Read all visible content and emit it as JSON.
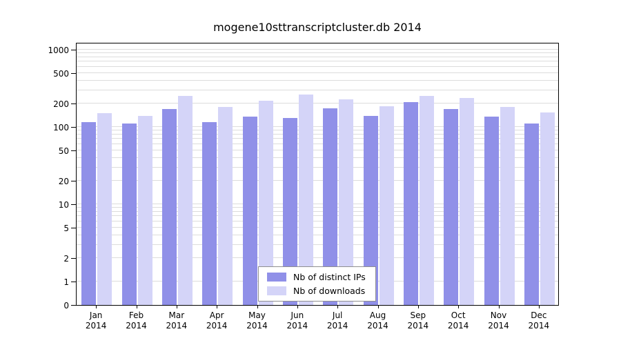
{
  "chart_data": {
    "type": "bar",
    "title": "mogene10sttranscriptcluster.db 2014",
    "year": "2014",
    "categories": [
      "Jan",
      "Feb",
      "Mar",
      "Apr",
      "May",
      "Jun",
      "Jul",
      "Aug",
      "Sep",
      "Oct",
      "Nov",
      "Dec"
    ],
    "series": [
      {
        "name": "Nb of distinct IPs",
        "color": "#9090e8",
        "values": [
          115,
          112,
          170,
          115,
          135,
          130,
          175,
          140,
          210,
          170,
          135,
          110
        ]
      },
      {
        "name": "Nb of downloads",
        "color": "#d4d4f8",
        "values": [
          150,
          140,
          255,
          180,
          220,
          265,
          230,
          185,
          250,
          235,
          180,
          155
        ]
      }
    ],
    "y_axis": {
      "scale": "log",
      "tick_values": [
        1000,
        500,
        200,
        100,
        50,
        20,
        10,
        5,
        2,
        1,
        0
      ],
      "tick_labels": [
        "1000",
        "500",
        "200",
        "100",
        "50",
        "20",
        "10",
        "5",
        "2",
        "1",
        "0"
      ],
      "ylim": [
        0,
        1300
      ]
    },
    "grid": true,
    "legend_position": "inside-bottom-center",
    "colors": {
      "gridline": "#dcdcdc",
      "axis": "#000000",
      "background": "#ffffff"
    }
  }
}
